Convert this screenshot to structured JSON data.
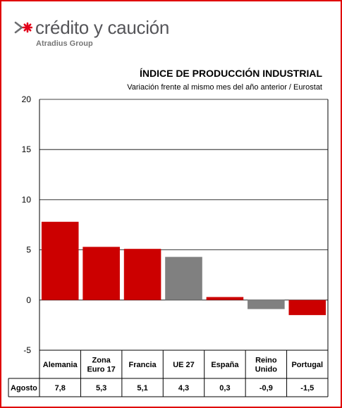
{
  "brand": {
    "name": "crédito y caución",
    "group": "Atradius Group",
    "colors": {
      "mark_red": "#e3001b",
      "mark_gray": "#6d6e71"
    }
  },
  "chart_data": {
    "type": "bar",
    "title": "ÍNDICE DE PRODUCCIÓN INDUSTRIAL",
    "subtitle": "Variación frente al mismo mes del año anterior / Eurostat",
    "categories": [
      "Alemania",
      "Zona Euro 17",
      "Francia",
      "UE 27",
      "España",
      "Reino Unido",
      "Portugal"
    ],
    "category_lines": [
      [
        "Alemania"
      ],
      [
        "Zona",
        "Euro 17"
      ],
      [
        "Francia"
      ],
      [
        "UE 27"
      ],
      [
        "España"
      ],
      [
        "Reino",
        "Unido"
      ],
      [
        "Portugal"
      ]
    ],
    "series": [
      {
        "name": "Agosto",
        "values": [
          7.8,
          5.3,
          5.1,
          4.3,
          0.3,
          -0.9,
          -1.5
        ],
        "value_labels": [
          "7,8",
          "5,3",
          "5,1",
          "4,3",
          "0,3",
          "-0,9",
          "-1,5"
        ]
      }
    ],
    "bar_colors": [
      "#cc0000",
      "#cc0000",
      "#cc0000",
      "#808080",
      "#cc0000",
      "#808080",
      "#cc0000"
    ],
    "ylim": [
      -5,
      20
    ],
    "yticks": [
      -5,
      0,
      5,
      10,
      15,
      20
    ],
    "grid": true,
    "data_table": true
  }
}
